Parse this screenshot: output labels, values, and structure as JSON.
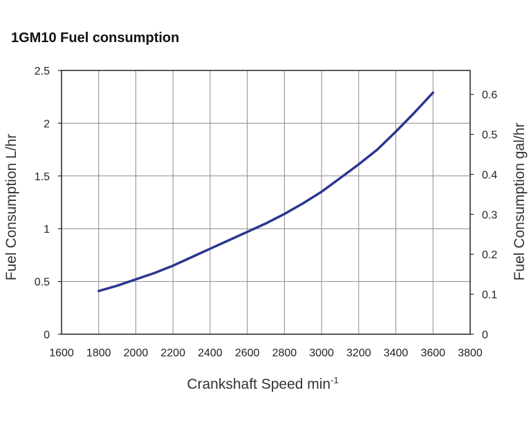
{
  "chart_data": {
    "type": "line",
    "title": "1GM10 Fuel consumption",
    "xlabel": "Crankshaft Speed min",
    "xlabel_superscript": "-1",
    "ylabel_left": "Fuel Consumption L/hr",
    "ylabel_right": "Fuel Consumption gal/hr",
    "xlim": [
      1600,
      3800
    ],
    "ylim_left": [
      0,
      2.5
    ],
    "ylim_right": [
      0,
      0.66
    ],
    "x_ticks": [
      "1600",
      "1800",
      "2000",
      "2200",
      "2400",
      "2600",
      "2800",
      "3000",
      "3200",
      "3400",
      "3600",
      "3800"
    ],
    "y_left_ticks": [
      "0",
      "0.5",
      "1",
      "1.5",
      "2",
      "2.5"
    ],
    "y_right_ticks": [
      "0",
      "0.1",
      "0.2",
      "0.3",
      "0.4",
      "0.5",
      "0.6"
    ],
    "grid": true,
    "color": "#2b3590",
    "series": [
      {
        "name": "Fuel consumption",
        "x": [
          1800,
          1900,
          2000,
          2100,
          2200,
          2300,
          2400,
          2500,
          2600,
          2700,
          2800,
          2900,
          3000,
          3100,
          3200,
          3300,
          3400,
          3500,
          3600
        ],
        "y": [
          0.41,
          0.46,
          0.52,
          0.58,
          0.65,
          0.73,
          0.81,
          0.89,
          0.97,
          1.05,
          1.14,
          1.24,
          1.35,
          1.48,
          1.61,
          1.75,
          1.92,
          2.1,
          2.29
        ]
      }
    ]
  }
}
